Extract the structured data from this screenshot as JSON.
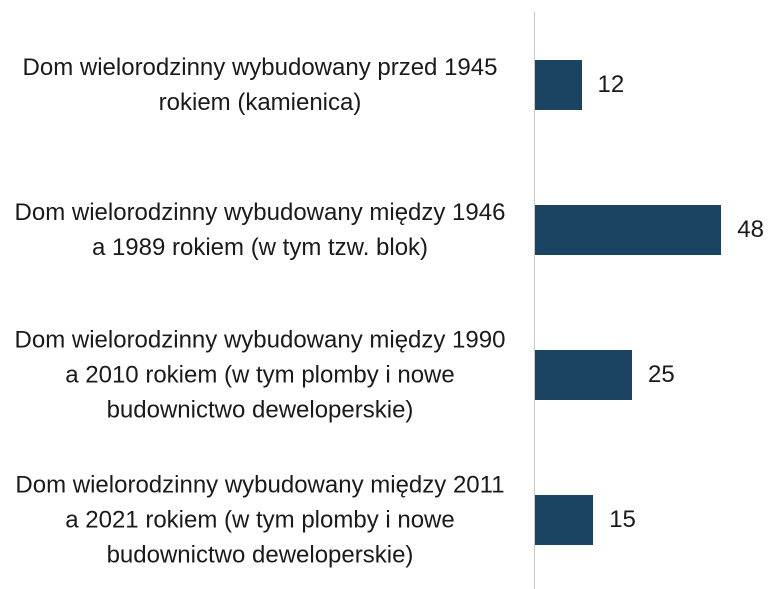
{
  "chart_data": {
    "type": "bar",
    "orientation": "horizontal",
    "categories": [
      "Dom wielorodzinny wybudowany przed 1945 rokiem (kamienica)",
      "Dom wielorodzinny wybudowany między 1946 a 1989 rokiem (w tym tzw. blok)",
      "Dom wielorodzinny wybudowany między 1990 a 2010 rokiem (w tym plomby i nowe budownictwo deweloperskie)",
      "Dom wielorodzinny wybudowany między 2011 a 2021 rokiem (w tym plomby i nowe budownictwo deweloperskie)"
    ],
    "values": [
      12,
      48,
      25,
      15
    ],
    "color": "#1b4462"
  }
}
